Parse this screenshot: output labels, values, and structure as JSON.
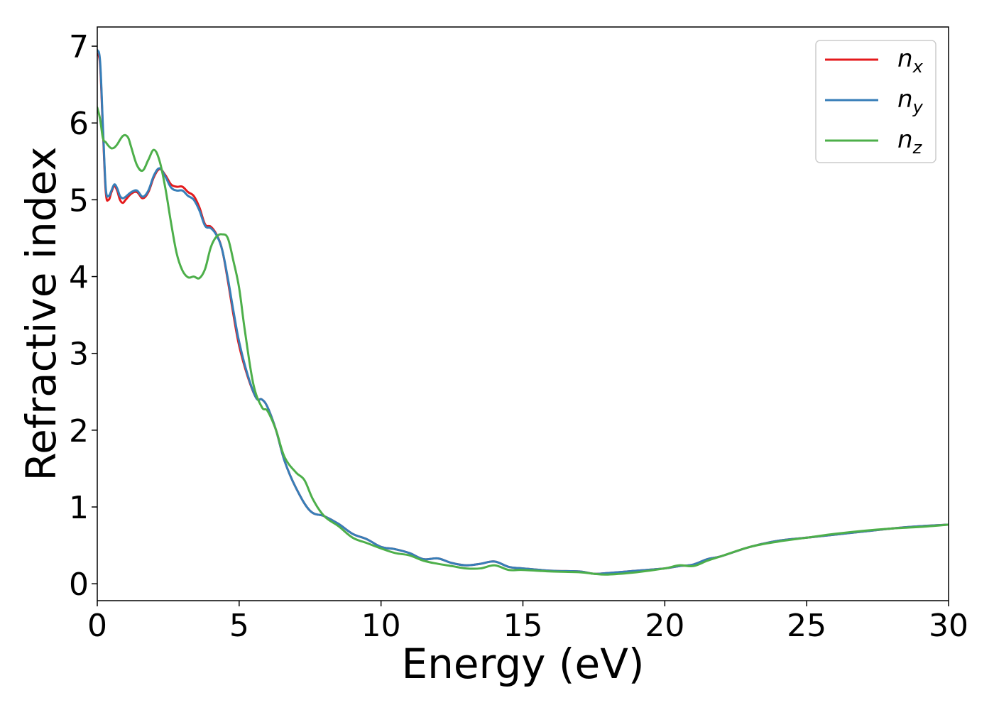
{
  "chart_data": {
    "type": "line",
    "title": "",
    "xlabel": "Energy (eV)",
    "ylabel": "Refractive index",
    "xlim": [
      0,
      30
    ],
    "ylim": [
      -0.22,
      7.25
    ],
    "xticks": [
      0,
      5,
      10,
      15,
      20,
      25,
      30
    ],
    "yticks": [
      0,
      1,
      2,
      3,
      4,
      5,
      6,
      7
    ],
    "grid": false,
    "legend_position": "top-right",
    "series": [
      {
        "name": "n",
        "subscript": "x",
        "color": "#e41a1c",
        "x": [
          0,
          0.1,
          0.2,
          0.3,
          0.4,
          0.5,
          0.6,
          0.7,
          0.8,
          0.9,
          1.0,
          1.2,
          1.4,
          1.6,
          1.8,
          2.0,
          2.2,
          2.4,
          2.6,
          2.8,
          3.0,
          3.2,
          3.4,
          3.6,
          3.8,
          4.0,
          4.2,
          4.4,
          4.6,
          4.8,
          5.0,
          5.3,
          5.6,
          5.8,
          6.0,
          6.3,
          6.6,
          7.0,
          7.5,
          8.0,
          8.5,
          9.0,
          9.5,
          10.0,
          10.5,
          11.0,
          11.5,
          12.0,
          12.5,
          13.0,
          13.5,
          14.0,
          14.5,
          15.0,
          16.0,
          17.0,
          17.5,
          18.0,
          19.0,
          20.0,
          20.5,
          21.0,
          21.5,
          22.0,
          23.0,
          24.0,
          25.0,
          26.0,
          27.0,
          28.0,
          29.0,
          30.0
        ],
        "y": [
          6.9,
          6.75,
          5.9,
          5.1,
          5.0,
          5.1,
          5.18,
          5.12,
          5.0,
          4.96,
          5.0,
          5.08,
          5.1,
          5.02,
          5.1,
          5.3,
          5.4,
          5.32,
          5.2,
          5.17,
          5.17,
          5.1,
          5.05,
          4.9,
          4.68,
          4.65,
          4.55,
          4.35,
          3.95,
          3.5,
          3.1,
          2.7,
          2.42,
          2.4,
          2.3,
          2.0,
          1.6,
          1.25,
          0.95,
          0.88,
          0.78,
          0.65,
          0.58,
          0.48,
          0.45,
          0.4,
          0.32,
          0.33,
          0.27,
          0.24,
          0.26,
          0.29,
          0.22,
          0.2,
          0.17,
          0.16,
          0.13,
          0.14,
          0.17,
          0.2,
          0.23,
          0.25,
          0.32,
          0.36,
          0.48,
          0.56,
          0.6,
          0.64,
          0.68,
          0.72,
          0.75,
          0.77
        ]
      },
      {
        "name": "n",
        "subscript": "y",
        "color": "#377eb8",
        "x": [
          0,
          0.1,
          0.2,
          0.3,
          0.4,
          0.5,
          0.6,
          0.7,
          0.8,
          0.9,
          1.0,
          1.2,
          1.4,
          1.6,
          1.8,
          2.0,
          2.2,
          2.4,
          2.6,
          2.8,
          3.0,
          3.2,
          3.4,
          3.6,
          3.8,
          4.0,
          4.2,
          4.4,
          4.6,
          4.8,
          5.0,
          5.3,
          5.6,
          5.8,
          6.0,
          6.3,
          6.6,
          7.0,
          7.5,
          8.0,
          8.5,
          9.0,
          9.5,
          10.0,
          10.5,
          11.0,
          11.5,
          12.0,
          12.5,
          13.0,
          13.5,
          14.0,
          14.5,
          15.0,
          16.0,
          17.0,
          17.5,
          18.0,
          19.0,
          20.0,
          20.5,
          21.0,
          21.5,
          22.0,
          23.0,
          24.0,
          25.0,
          26.0,
          27.0,
          28.0,
          29.0,
          30.0
        ],
        "y": [
          6.95,
          6.8,
          5.95,
          5.15,
          5.05,
          5.12,
          5.2,
          5.15,
          5.05,
          5.02,
          5.04,
          5.1,
          5.12,
          5.04,
          5.12,
          5.32,
          5.41,
          5.3,
          5.16,
          5.12,
          5.12,
          5.05,
          5.0,
          4.86,
          4.66,
          4.63,
          4.54,
          4.35,
          3.98,
          3.55,
          3.15,
          2.72,
          2.42,
          2.4,
          2.3,
          2.0,
          1.6,
          1.25,
          0.95,
          0.88,
          0.78,
          0.65,
          0.58,
          0.48,
          0.45,
          0.4,
          0.32,
          0.33,
          0.27,
          0.24,
          0.26,
          0.29,
          0.22,
          0.2,
          0.17,
          0.16,
          0.13,
          0.14,
          0.17,
          0.2,
          0.23,
          0.25,
          0.32,
          0.36,
          0.48,
          0.56,
          0.6,
          0.64,
          0.68,
          0.72,
          0.75,
          0.77
        ]
      },
      {
        "name": "n",
        "subscript": "z",
        "color": "#4daf4a",
        "x": [
          0,
          0.1,
          0.2,
          0.3,
          0.4,
          0.5,
          0.6,
          0.7,
          0.8,
          0.9,
          1.0,
          1.1,
          1.2,
          1.4,
          1.6,
          1.8,
          2.0,
          2.2,
          2.4,
          2.6,
          2.8,
          3.0,
          3.2,
          3.4,
          3.6,
          3.8,
          4.0,
          4.2,
          4.4,
          4.6,
          4.8,
          5.0,
          5.2,
          5.5,
          5.8,
          6.0,
          6.3,
          6.6,
          7.0,
          7.3,
          7.6,
          8.0,
          8.5,
          9.0,
          9.5,
          10.0,
          10.5,
          11.0,
          11.5,
          12.0,
          12.5,
          13.0,
          13.5,
          14.0,
          14.5,
          15.0,
          16.0,
          17.0,
          17.5,
          18.0,
          19.0,
          20.0,
          20.5,
          21.0,
          21.5,
          22.0,
          23.0,
          24.0,
          25.0,
          26.0,
          27.0,
          28.0,
          29.0,
          30.0
        ],
        "y": [
          6.2,
          6.05,
          5.8,
          5.75,
          5.7,
          5.67,
          5.68,
          5.72,
          5.78,
          5.83,
          5.84,
          5.8,
          5.68,
          5.45,
          5.38,
          5.52,
          5.65,
          5.5,
          5.15,
          4.7,
          4.3,
          4.08,
          3.99,
          4.0,
          3.98,
          4.1,
          4.38,
          4.52,
          4.55,
          4.5,
          4.2,
          3.85,
          3.3,
          2.6,
          2.3,
          2.25,
          2.0,
          1.65,
          1.45,
          1.35,
          1.1,
          0.88,
          0.75,
          0.6,
          0.53,
          0.46,
          0.4,
          0.37,
          0.3,
          0.26,
          0.23,
          0.2,
          0.2,
          0.24,
          0.18,
          0.18,
          0.16,
          0.15,
          0.13,
          0.12,
          0.15,
          0.2,
          0.24,
          0.23,
          0.3,
          0.36,
          0.48,
          0.55,
          0.6,
          0.65,
          0.69,
          0.72,
          0.74,
          0.77
        ]
      }
    ]
  }
}
